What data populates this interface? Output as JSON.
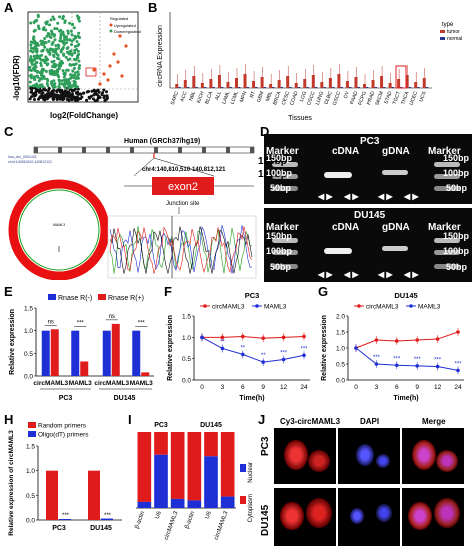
{
  "panels": [
    "A",
    "B",
    "C",
    "D",
    "E",
    "F",
    "G",
    "H",
    "I",
    "J"
  ],
  "volcano": {
    "ylabel": "-log10(FDR)",
    "xlabel": "log2(FoldChange)",
    "legend_title": "Regulated",
    "legend": [
      "Upregulated",
      "Downregulated"
    ],
    "colors": {
      "up": "#e8501e",
      "down": "#2e9e5a",
      "ns": "#111111"
    }
  },
  "tissue": {
    "ylabel": "circRNA Expression",
    "xlabel": "Tissues",
    "legend_title": "type",
    "legend": [
      "tumor",
      "normal"
    ],
    "tissues": [
      "SARC",
      "ACC",
      "NBL",
      "KICH",
      "BLCA",
      "ALL",
      "LAML",
      "LCML",
      "MPN",
      "RT",
      "GBM",
      "MBL",
      "BRCA",
      "CESC",
      "COAD",
      "LGG",
      "OSCC",
      "LUNG",
      "DLBC",
      "GSCC",
      "OV",
      "PAAD",
      "PCPG",
      "PRAD",
      "SKCM",
      "STAD",
      "TGCT",
      "THCA",
      "UCEC",
      "UCS"
    ]
  },
  "circ": {
    "header": "Human (GRCh37/hg19)",
    "locus": "chr4:140,810,510-140,812,121",
    "exon": "exon2",
    "junction": "Junction site",
    "ring_label": "MAML3"
  },
  "gel_pc3": {
    "title": "PC3",
    "marker": "Marker",
    "cdna": "cDNA",
    "gdna": "gDNA",
    "bp": [
      "150bp",
      "100bp",
      "50bp"
    ]
  },
  "gel_du145": {
    "title": "DU145",
    "marker": "Marker",
    "cdna": "cDNA",
    "gdna": "gDNA",
    "bp": [
      "150bp",
      "100bp",
      "50bp"
    ]
  },
  "chart_data": [
    {
      "panel": "E",
      "type": "bar",
      "ylabel": "Relative expression",
      "categories": [
        "circMAML3",
        "MAML3",
        "circMAML3",
        "MAML3"
      ],
      "groups": [
        "PC3",
        "DU145"
      ],
      "series": [
        {
          "name": "Rnase R(-)",
          "values": [
            1.0,
            1.0,
            1.0,
            1.0
          ]
        },
        {
          "name": "Rnase R(+)",
          "values": [
            1.03,
            0.32,
            1.15,
            0.08
          ]
        }
      ],
      "annotations": [
        "ns",
        "***",
        "ns",
        "***"
      ],
      "yticks": [
        0.0,
        0.5,
        1.0,
        1.5
      ],
      "ylim": [
        0,
        1.5
      ],
      "colors": [
        "#1f2fd6",
        "#e01b1b"
      ]
    },
    {
      "panel": "F",
      "type": "line",
      "title": "PC3",
      "xlabel": "Time(h)",
      "ylabel": "Relative expression",
      "x": [
        0,
        3,
        6,
        9,
        12,
        24
      ],
      "series": [
        {
          "name": "circMAML3",
          "values": [
            1.0,
            1.0,
            1.02,
            0.98,
            1.0,
            1.02
          ]
        },
        {
          "name": "MAML3",
          "values": [
            1.0,
            0.74,
            0.6,
            0.42,
            0.48,
            0.58
          ]
        }
      ],
      "annotations": [
        "",
        "**",
        "**",
        "**",
        "***",
        "***"
      ],
      "yticks": [
        0.0,
        0.5,
        1.0,
        1.5
      ],
      "ylim": [
        0,
        1.5
      ],
      "colors": [
        "#e01b1b",
        "#1f2fd6"
      ]
    },
    {
      "panel": "G",
      "type": "line",
      "title": "DU145",
      "xlabel": "Time(h)",
      "ylabel": "Relative expression",
      "x": [
        0,
        3,
        6,
        9,
        12,
        24
      ],
      "series": [
        {
          "name": "circMAML3",
          "values": [
            1.0,
            1.25,
            1.22,
            1.25,
            1.28,
            1.5
          ]
        },
        {
          "name": "MAML3",
          "values": [
            1.0,
            0.5,
            0.46,
            0.44,
            0.42,
            0.3
          ]
        }
      ],
      "annotations": [
        "",
        "***",
        "***",
        "***",
        "***",
        "***"
      ],
      "yticks": [
        0.0,
        0.5,
        1.0,
        1.5,
        2.0
      ],
      "ylim": [
        0,
        2.0
      ],
      "colors": [
        "#e01b1b",
        "#1f2fd6"
      ]
    },
    {
      "panel": "H",
      "type": "bar",
      "ylabel": "Relative expression of circMAML3",
      "categories": [
        "PC3",
        "DU145"
      ],
      "series": [
        {
          "name": "Random primers",
          "values": [
            1.0,
            1.0
          ]
        },
        {
          "name": "Oligo(dT) primers",
          "values": [
            0.02,
            0.03
          ]
        }
      ],
      "annotations": [
        "***",
        "***"
      ],
      "yticks": [
        0.0,
        0.5,
        1.0,
        1.5
      ],
      "ylim": [
        0,
        1.5
      ],
      "colors": [
        "#e01b1b",
        "#1f2fd6"
      ]
    },
    {
      "panel": "I",
      "type": "bar",
      "groups": [
        "PC3",
        "DU145"
      ],
      "categories": [
        "β-actin",
        "U6",
        "circMAML3",
        "β-actin",
        "U6",
        "circMAML3"
      ],
      "series": [
        {
          "name": "Nuclear",
          "values": [
            0.08,
            0.7,
            0.12,
            0.1,
            0.68,
            0.15
          ]
        },
        {
          "name": "Cytoplasm",
          "values": [
            0.92,
            0.3,
            0.88,
            0.9,
            0.32,
            0.85
          ]
        }
      ],
      "colors": [
        "#1f2fd6",
        "#e01b1b"
      ]
    }
  ],
  "fish": {
    "columns": [
      "Cy3-circMAML3",
      "DAPI",
      "Merge"
    ],
    "rows": [
      "PC3",
      "DU145"
    ]
  }
}
